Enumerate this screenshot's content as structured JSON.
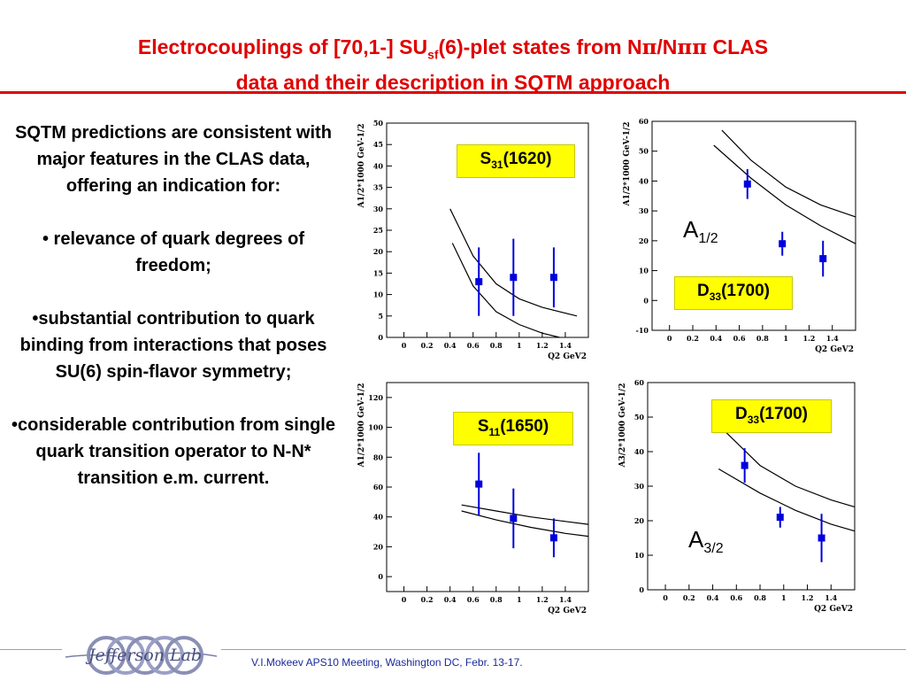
{
  "title": {
    "line1_a": "Electrocouplings of [70,1-] SU",
    "line1_sub": "sf",
    "line1_b": "(6)-plet states from N",
    "pi1": "π",
    "slash": "/N",
    "pi2": "ππ",
    "line1_c": " CLAS",
    "line2": "data and their description in SQTM approach"
  },
  "body": {
    "p1": "SQTM predictions are consistent with major features in the CLAS data, offering an indication for:",
    "p2": "• relevance of quark degrees of freedom;",
    "p3": "•substantial contribution to quark binding from interactions that poses SU(6) spin-flavor symmetry;",
    "p4": "•considerable contribution from single quark transition operator to N-N* transition e.m. current."
  },
  "labels": {
    "s31_main": "S",
    "s31_sub": "31",
    "s31_tail": "(1620)",
    "d33_main": "D",
    "d33_sub": "33",
    "d33_tail": "(1700)",
    "s11_main": "S",
    "s11_sub": "11",
    "s11_tail": "(1650)",
    "d33b_main": "D",
    "d33b_sub": "33",
    "d33b_tail": "(1700)",
    "a12_main": "A",
    "a12_sub": "1/2",
    "a32_main": "A",
    "a32_sub": "3/2"
  },
  "footer": {
    "text": "V.I.Mokeev   APS10 Meeting, Washington DC, Febr. 13-17."
  },
  "logo": {
    "text": "Jefferson Lab"
  },
  "colors": {
    "title": "#e00000",
    "data": "#0000dd",
    "label_bg": "#ffff00"
  },
  "chart_data": [
    {
      "type": "scatter",
      "state": "S31(1620)",
      "ylabel": "A1/2*1000 GeV-1/2",
      "xlabel": "Q2 GeV2",
      "xlim": [
        -0.15,
        1.6
      ],
      "ylim": [
        0,
        50
      ],
      "xticks": [
        "0",
        "0.2",
        "0.4",
        "0.6",
        "0.8",
        "1",
        "1.2",
        "1.4"
      ],
      "yticks": [
        "0",
        "5",
        "10",
        "15",
        "20",
        "25",
        "30",
        "35",
        "40",
        "45",
        "50"
      ],
      "points": [
        {
          "x": 0.65,
          "y": 13,
          "err": 8
        },
        {
          "x": 0.95,
          "y": 14,
          "err": 9
        },
        {
          "x": 1.3,
          "y": 14,
          "err": 7
        }
      ],
      "curves": [
        [
          [
            0.4,
            30
          ],
          [
            0.6,
            19
          ],
          [
            0.8,
            12.5
          ],
          [
            1.0,
            9
          ],
          [
            1.2,
            7
          ],
          [
            1.5,
            5
          ]
        ],
        [
          [
            0.42,
            22
          ],
          [
            0.6,
            12
          ],
          [
            0.8,
            6
          ],
          [
            1.0,
            3
          ],
          [
            1.2,
            1
          ],
          [
            1.35,
            0
          ]
        ]
      ]
    },
    {
      "type": "scatter",
      "state": "D33(1700)",
      "ylabel": "A1/2*1000 GeV-1/2",
      "xlabel": "Q2 GeV2",
      "xlim": [
        -0.15,
        1.6
      ],
      "ylim": [
        -10,
        60
      ],
      "xticks": [
        "0",
        "0.2",
        "0.4",
        "0.6",
        "0.8",
        "1",
        "1.2",
        "1.4"
      ],
      "yticks": [
        "-10",
        "0",
        "10",
        "20",
        "30",
        "40",
        "50",
        "60"
      ],
      "points": [
        {
          "x": 0.67,
          "y": 39,
          "err": 5
        },
        {
          "x": 0.97,
          "y": 19,
          "err": 4
        },
        {
          "x": 1.32,
          "y": 14,
          "err": 6
        }
      ],
      "curves": [
        [
          [
            0.45,
            57
          ],
          [
            0.7,
            47
          ],
          [
            1.0,
            38
          ],
          [
            1.3,
            32
          ],
          [
            1.6,
            28
          ]
        ],
        [
          [
            0.38,
            52
          ],
          [
            0.7,
            41
          ],
          [
            1.0,
            32
          ],
          [
            1.3,
            25
          ],
          [
            1.6,
            19
          ]
        ]
      ]
    },
    {
      "type": "scatter",
      "state": "S11(1650)",
      "ylabel": "A1/2*1000 GeV-1/2",
      "xlabel": "Q2 GeV2",
      "xlim": [
        -0.15,
        1.6
      ],
      "ylim": [
        -10,
        130
      ],
      "xticks": [
        "0",
        "0.2",
        "0.4",
        "0.6",
        "0.8",
        "1",
        "1.2",
        "1.4"
      ],
      "yticks": [
        "0",
        "20",
        "40",
        "60",
        "80",
        "100",
        "120"
      ],
      "points": [
        {
          "x": 0.65,
          "y": 62,
          "err": 21
        },
        {
          "x": 0.95,
          "y": 39,
          "err": 20
        },
        {
          "x": 1.3,
          "y": 26,
          "err": 13
        }
      ],
      "curves": [
        [
          [
            0.5,
            48
          ],
          [
            0.8,
            44
          ],
          [
            1.1,
            40
          ],
          [
            1.4,
            37
          ],
          [
            1.6,
            35
          ]
        ],
        [
          [
            0.5,
            44
          ],
          [
            0.8,
            38
          ],
          [
            1.1,
            33
          ],
          [
            1.4,
            29
          ],
          [
            1.6,
            27
          ]
        ]
      ]
    },
    {
      "type": "scatter",
      "state": "D33(1700)",
      "ylabel": "A3/2*1000 GeV-1/2",
      "xlabel": "Q2 GeV2",
      "xlim": [
        -0.15,
        1.6
      ],
      "ylim": [
        0,
        60
      ],
      "xticks": [
        "0",
        "0.2",
        "0.4",
        "0.6",
        "0.8",
        "1",
        "1.2",
        "1.4"
      ],
      "yticks": [
        "0",
        "10",
        "20",
        "30",
        "40",
        "50",
        "60"
      ],
      "points": [
        {
          "x": 0.67,
          "y": 36,
          "err": 5
        },
        {
          "x": 0.97,
          "y": 21,
          "err": 3
        },
        {
          "x": 1.32,
          "y": 15,
          "err": 7
        }
      ],
      "curves": [
        [
          [
            0.5,
            46
          ],
          [
            0.8,
            36
          ],
          [
            1.1,
            30
          ],
          [
            1.4,
            26
          ],
          [
            1.6,
            24
          ]
        ],
        [
          [
            0.45,
            35
          ],
          [
            0.8,
            28
          ],
          [
            1.1,
            23
          ],
          [
            1.4,
            19
          ],
          [
            1.6,
            17
          ]
        ]
      ]
    }
  ]
}
